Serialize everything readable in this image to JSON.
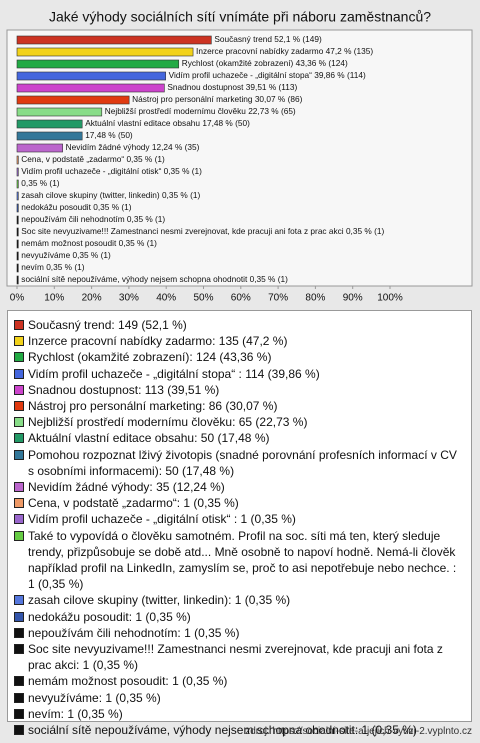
{
  "chart_data": {
    "type": "bar",
    "orientation": "horizontal",
    "title": "Jaké výhody sociálních sítí vnímáte při náboru zaměstnanců?",
    "values": [
      52.1,
      47.2,
      43.36,
      39.86,
      39.51,
      30.07,
      22.73,
      17.48,
      17.48,
      12.24,
      0.35,
      0.35,
      0.35,
      0.35,
      0.35,
      0.35,
      0.35,
      0.35,
      0.35,
      0.35,
      0.35
    ],
    "value_labels": [
      "Současný trend 52,1 % (149)",
      "Inzerce pracovní nabídky zadarmo 47,2 % (135)",
      "Rychlost (okamžité zobrazení) 43,36 % (124)",
      "Vidím profil uchazeče - „digitální stopa“  39,86 % (114)",
      "Snadnou dostupnost 39,51 % (113)",
      "Nástroj pro personální marketing 30,07 % (86)",
      "Nejbližší prostředí modernímu člověku 22,73 % (65)",
      "Aktuální vlastní editace obsahu 17,48 % (50)",
      "17,48 % (50)",
      "Nevidím žádné výhody 12,24 % (35)",
      "Cena, v podstatě „zadarmo“ 0,35 % (1)",
      "Vidím profil uchazeče - „digitální otisk“  0,35 % (1)",
      "0,35 % (1)",
      "zasah cilove skupiny (twitter, linkedin) 0,35 % (1)",
      "nedokážu posoudit 0,35 % (1)",
      "nepoužívám čili nehodnotím 0,35 % (1)",
      "Soc site nevyuzivame!!! Zamestnanci nesmi zverejnovat, kde pracuji ani fota z prac akci 0,35 % (1)",
      "nemám možnost posoudit 0,35 % (1)",
      "nevyužíváme 0,35 % (1)",
      "nevím 0,35 % (1)",
      "sociální sítě nepoužíváme, výhody nejsem schopna ohodnotit 0,35 % (1)"
    ],
    "legend_labels": [
      "Současný trend: 149 (52,1 %)",
      "Inzerce pracovní nabídky zadarmo: 135 (47,2 %)",
      "Rychlost (okamžité zobrazení): 124 (43,36 %)",
      "Vidím profil uchazeče - „digitální stopa“ : 114 (39,86 %)",
      "Snadnou dostupnost: 113 (39,51 %)",
      "Nástroj pro personální marketing: 86 (30,07 %)",
      "Nejbližší prostředí modernímu člověku: 65 (22,73 %)",
      "Aktuální vlastní editace obsahu: 50 (17,48 %)",
      "Pomohou rozpoznat lživý životopis (snadné porovnání profesních informací v CV s osobními informacemi): 50 (17,48 %)",
      "Nevidím žádné výhody: 35 (12,24 %)",
      "Cena, v podstatě „zadarmo“: 1 (0,35 %)",
      "Vidím profil uchazeče - „digitální otisk“ : 1 (0,35 %)",
      "Také to vypovídá o člověku samotném. Profil na soc. síti má ten, který sleduje trendy, přizpůsobuje se době atd... Mně osobně to napoví hodně. Nemá-li člověk například profil na LinkedIn, zamyslím se, proč to asi nepotřebuje nebo nechce. : 1 (0,35 %)",
      "zasah cilove skupiny (twitter, linkedin): 1 (0,35 %)",
      "nedokážu posoudit: 1 (0,35 %)",
      "nepoužívám čili nehodnotím: 1 (0,35 %)",
      "Soc site nevyuzivame!!! Zamestnanci nesmi zverejnovat, kde pracuji ani fota z prac akci: 1 (0,35 %)",
      "nemám možnost posoudit: 1 (0,35 %)",
      "nevyužíváme: 1 (0,35 %)",
      "nevím: 1 (0,35 %)",
      "sociální sítě nepoužíváme, výhody nejsem schopna ohodnotit: 1 (0,35 %)"
    ],
    "colors": [
      "#cc3322",
      "#f2d21a",
      "#22aa44",
      "#4466dd",
      "#cc44cc",
      "#e03a10",
      "#88dd88",
      "#229966",
      "#337799",
      "#bb66cc",
      "#ee9966",
      "#9966cc",
      "#66cc44",
      "#5577dd",
      "#3355aa",
      "#111111",
      "#111111",
      "#111111",
      "#111111",
      "#111111",
      "#111111"
    ],
    "xlim": [
      0,
      120
    ],
    "xticks": [
      {
        "value": 0,
        "label": "0%"
      },
      {
        "value": 10,
        "label": "10%"
      },
      {
        "value": 20,
        "label": "20%"
      },
      {
        "value": 30,
        "label": "30%"
      },
      {
        "value": 40,
        "label": "40%"
      },
      {
        "value": 50,
        "label": "50%"
      },
      {
        "value": 60,
        "label": "60%"
      },
      {
        "value": 70,
        "label": "70%"
      },
      {
        "value": 80,
        "label": "80%"
      },
      {
        "value": 90,
        "label": "90%"
      },
      {
        "value": 100,
        "label": "100%"
      }
    ],
    "source": "zdroj: https://socialni-site-a-jejich-vyuzi-2.vyplnto.cz"
  }
}
